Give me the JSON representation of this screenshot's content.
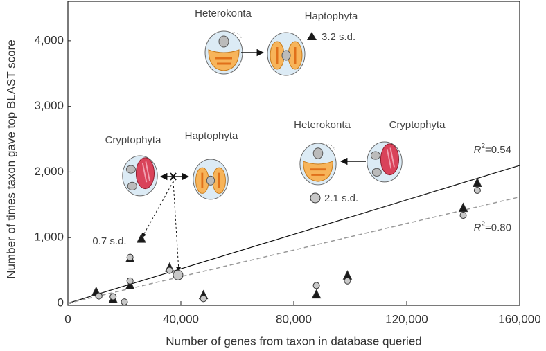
{
  "chart_data": {
    "type": "scatter",
    "x_label": "Number of genes from taxon in database queried",
    "y_label": "Number of times taxon gave top BLAST score",
    "xlim": [
      0,
      160000
    ],
    "ylim": [
      0,
      4600
    ],
    "xticks": [
      0,
      {
        "value": 40000,
        "label": "40,000"
      },
      {
        "value": 80000,
        "label": "80,000"
      },
      {
        "value": 120000,
        "label": "120,000"
      },
      {
        "value": 160000,
        "label": "160,000"
      }
    ],
    "yticks": [
      0,
      {
        "value": 1000,
        "label": "1,000"
      },
      {
        "value": 2000,
        "label": "2,000"
      },
      {
        "value": 3000,
        "label": "3,000"
      },
      {
        "value": 4000,
        "label": "4,000"
      }
    ],
    "series": [
      {
        "marker": "triangle",
        "color": "#1a1a1a",
        "x": [
          10000,
          16000,
          22000,
          22000,
          26000,
          36000,
          48000,
          88000,
          99000,
          140000,
          145000
        ],
        "values": [
          170,
          60,
          680,
          270,
          980,
          540,
          120,
          130,
          420,
          1450,
          1830
        ]
      },
      {
        "marker": "circle",
        "color": "#c8c8c8",
        "x": [
          11000,
          16000,
          20000,
          22000,
          22000,
          36000,
          48000,
          88000,
          99000,
          140000,
          145000
        ],
        "values": [
          110,
          100,
          20,
          700,
          340,
          500,
          70,
          270,
          340,
          1340,
          1720
        ]
      },
      {
        "marker": "circle-large",
        "color": "#c8c8c8",
        "x": [
          39000
        ],
        "values": [
          430
        ]
      }
    ],
    "trend_lines": [
      {
        "x": [
          0,
          160000
        ],
        "values": [
          0,
          2100
        ],
        "color": "#111",
        "dashed": false,
        "label": {
          "symbol": "R",
          "exponent": "2",
          "text": "=0.54"
        }
      },
      {
        "x": [
          0,
          160000
        ],
        "values": [
          0,
          1620
        ],
        "color": "#999",
        "dashed": true,
        "label": {
          "symbol": "R",
          "exponent": "2",
          "text": "=0.80"
        }
      }
    ],
    "annotations": {
      "top_left": "Heterokonta",
      "top_right": "Haptophyta",
      "top_sd": "3.2 s.d.",
      "mid_left": "Cryptophyta",
      "mid_right": "Haptophyta",
      "mid_sd": "0.7 s.d.",
      "right_left": "Heterokonta",
      "right_right": "Cryptophyta",
      "right_sd": "2.1 s.d."
    }
  }
}
